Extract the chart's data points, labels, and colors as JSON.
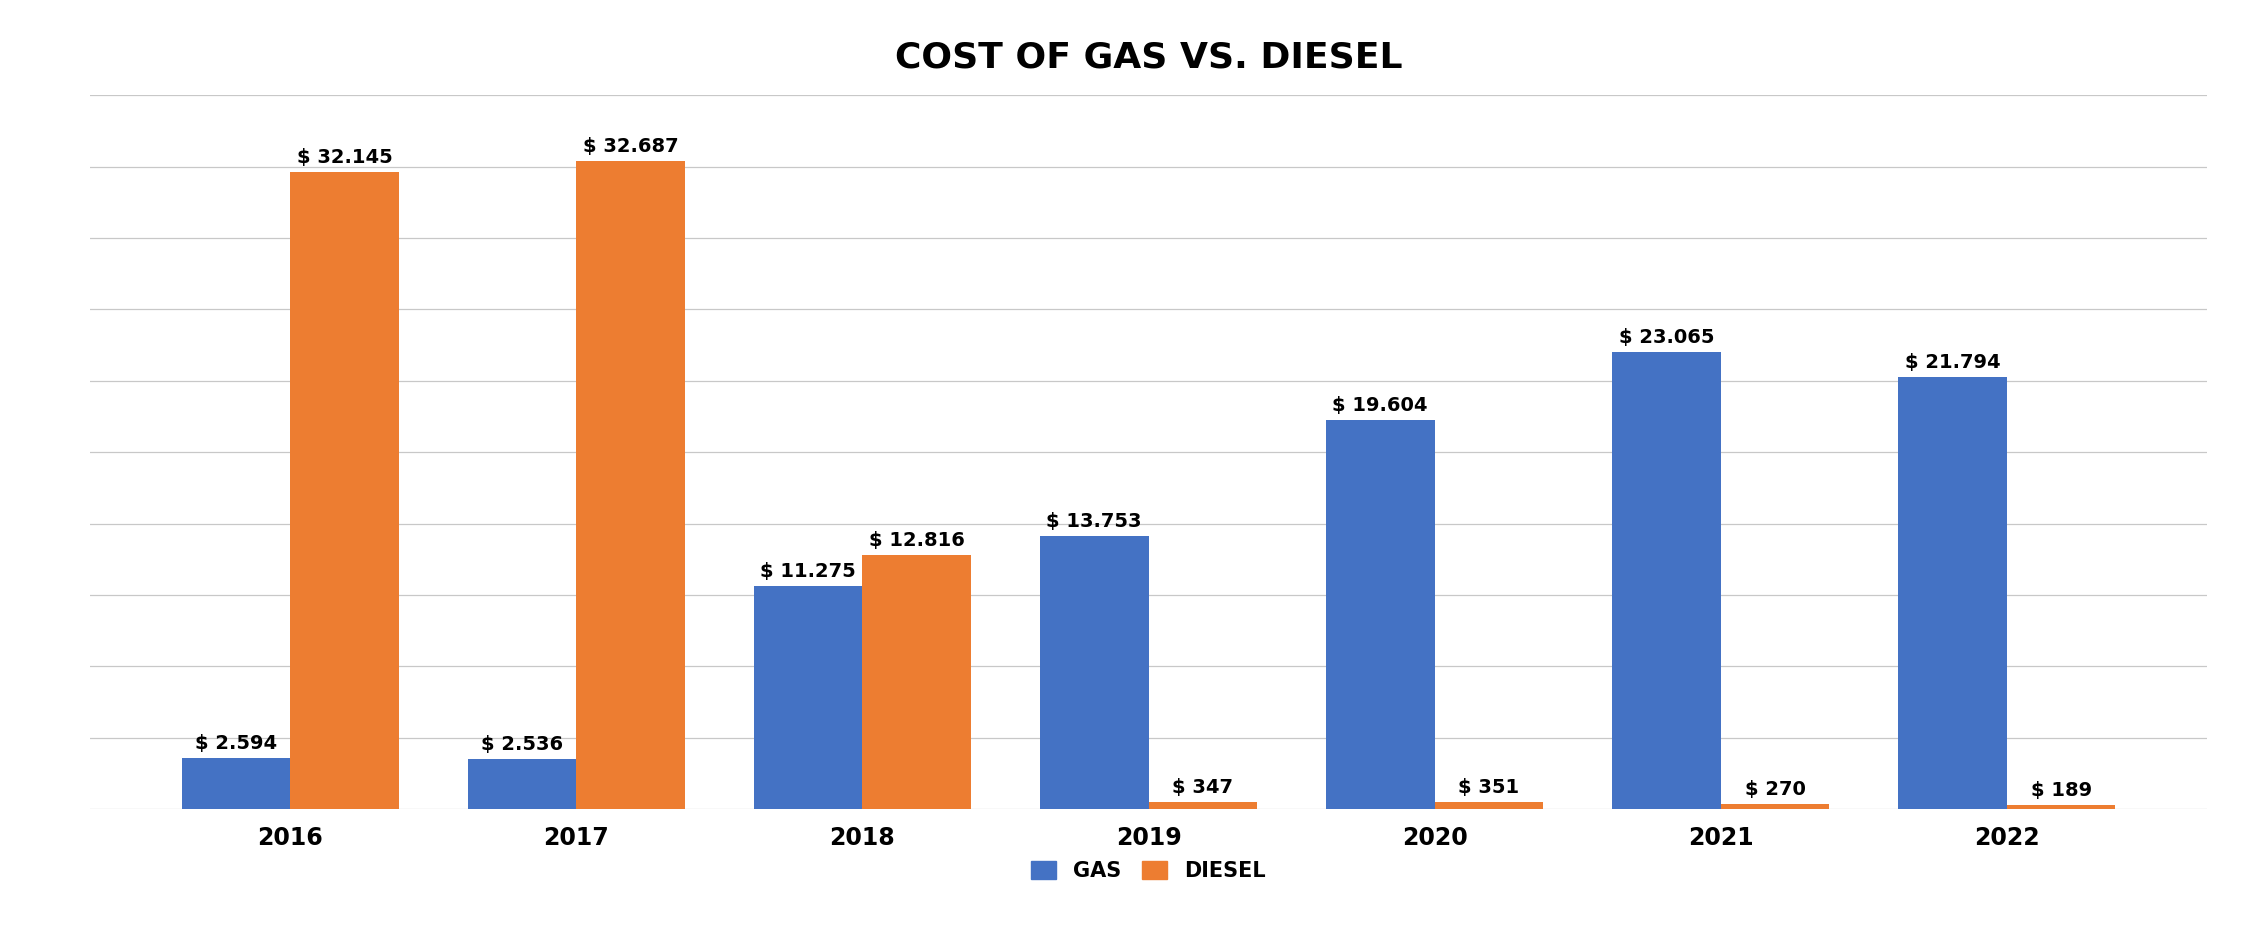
{
  "title": "COST OF GAS VS. DIESEL",
  "years": [
    "2016",
    "2017",
    "2018",
    "2019",
    "2020",
    "2021",
    "2022"
  ],
  "gas_values": [
    2.594,
    2.536,
    11.275,
    13.753,
    19.604,
    23.065,
    21.794
  ],
  "diesel_values": [
    32.145,
    32.687,
    12.816,
    0.347,
    0.351,
    0.27,
    0.189
  ],
  "gas_labels": [
    "$ 2.594",
    "$ 2.536",
    "$ 11.275",
    "$ 13.753",
    "$ 19.604",
    "$ 23.065",
    "$ 21.794"
  ],
  "diesel_labels": [
    "$ 32.145",
    "$ 32.687",
    "$ 12.816",
    "$ 347",
    "$ 351",
    "$ 270",
    "$ 189"
  ],
  "gas_color": "#4472C4",
  "diesel_color": "#ED7D31",
  "background_color": "#FFFFFF",
  "title_fontsize": 26,
  "label_fontsize": 14,
  "tick_fontsize": 17,
  "legend_fontsize": 15,
  "bar_width": 0.38,
  "ylim": [
    0,
    36
  ],
  "grid_color": "#C8C8C8",
  "num_gridlines": 10
}
